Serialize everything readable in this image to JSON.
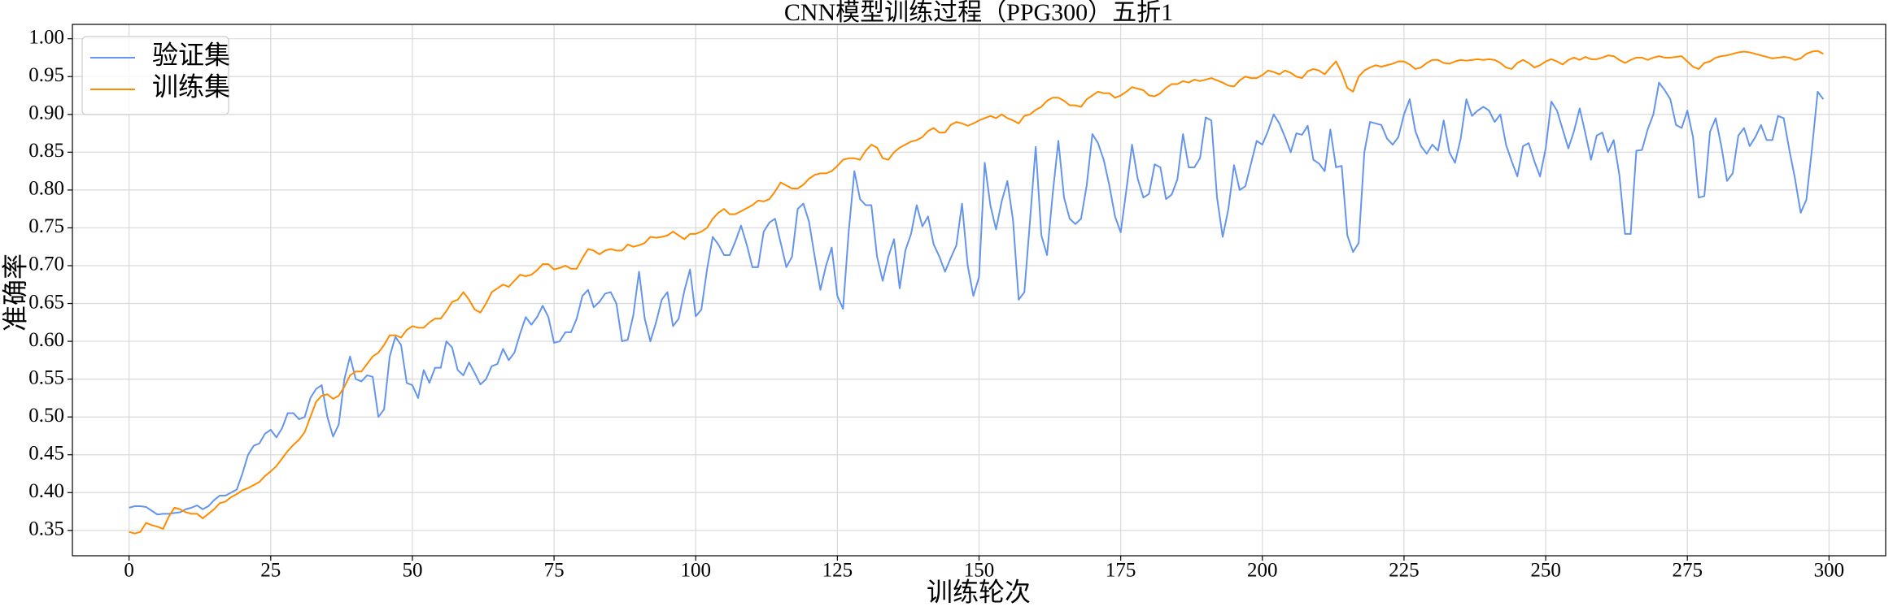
{
  "chart_data": {
    "type": "line",
    "title": "CNN模型训练过程（PPG300）五折1",
    "xlabel": "训练轮次",
    "ylabel": "准确率",
    "grid": true,
    "legend": "upper left",
    "xlim": [
      -10,
      310
    ],
    "ylim": [
      0.3165,
      1.019
    ],
    "xticks": [
      0,
      25,
      50,
      75,
      100,
      125,
      150,
      175,
      200,
      225,
      250,
      275,
      300
    ],
    "yticks": [
      0.35,
      {
        "value": 0.4,
        "label": "0.40"
      },
      0.45,
      {
        "value": 0.5,
        "label": "0.50"
      },
      0.55,
      {
        "value": 0.6,
        "label": "0.60"
      },
      0.65,
      {
        "value": 0.7,
        "label": "0.70"
      },
      0.75,
      {
        "value": 0.8,
        "label": "0.80"
      },
      0.85,
      {
        "value": 0.9,
        "label": "0.90"
      },
      0.95,
      {
        "value": 1.0,
        "label": "1.00"
      }
    ],
    "x": [
      0,
      1,
      2,
      3,
      4,
      5,
      6,
      7,
      8,
      9,
      10,
      11,
      12,
      13,
      14,
      15,
      16,
      17,
      18,
      19,
      20,
      21,
      22,
      23,
      24,
      25,
      26,
      27,
      28,
      29,
      30,
      31,
      32,
      33,
      34,
      35,
      36,
      37,
      38,
      39,
      40,
      41,
      42,
      43,
      44,
      45,
      46,
      47,
      48,
      49,
      50,
      51,
      52,
      53,
      54,
      55,
      56,
      57,
      58,
      59,
      60,
      61,
      62,
      63,
      64,
      65,
      66,
      67,
      68,
      69,
      70,
      71,
      72,
      73,
      74,
      75,
      76,
      77,
      78,
      79,
      80,
      81,
      82,
      83,
      84,
      85,
      86,
      87,
      88,
      89,
      90,
      91,
      92,
      93,
      94,
      95,
      96,
      97,
      98,
      99,
      100,
      101,
      102,
      103,
      104,
      105,
      106,
      107,
      108,
      109,
      110,
      111,
      112,
      113,
      114,
      115,
      116,
      117,
      118,
      119,
      120,
      121,
      122,
      123,
      124,
      125,
      126,
      127,
      128,
      129,
      130,
      131,
      132,
      133,
      134,
      135,
      136,
      137,
      138,
      139,
      140,
      141,
      142,
      143,
      144,
      145,
      146,
      147,
      148,
      149,
      150,
      151,
      152,
      153,
      154,
      155,
      156,
      157,
      158,
      159,
      160,
      161,
      162,
      163,
      164,
      165,
      166,
      167,
      168,
      169,
      170,
      171,
      172,
      173,
      174,
      175,
      176,
      177,
      178,
      179,
      180,
      181,
      182,
      183,
      184,
      185,
      186,
      187,
      188,
      189,
      190,
      191,
      192,
      193,
      194,
      195,
      196,
      197,
      198,
      199,
      200,
      201,
      202,
      203,
      204,
      205,
      206,
      207,
      208,
      209,
      210,
      211,
      212,
      213,
      214,
      215,
      216,
      217,
      218,
      219,
      220,
      221,
      222,
      223,
      224,
      225,
      226,
      227,
      228,
      229,
      230,
      231,
      232,
      233,
      234,
      235,
      236,
      237,
      238,
      239,
      240,
      241,
      242,
      243,
      244,
      245,
      246,
      247,
      248,
      249,
      250,
      251,
      252,
      253,
      254,
      255,
      256,
      257,
      258,
      259,
      260,
      261,
      262,
      263,
      264,
      265,
      266,
      267,
      268,
      269,
      270,
      271,
      272,
      273,
      274,
      275,
      276,
      277,
      278,
      279,
      280,
      281,
      282,
      283,
      284,
      285,
      286,
      287,
      288,
      289,
      290,
      291,
      292,
      293,
      294,
      295,
      296,
      297,
      298,
      299
    ],
    "series": [
      {
        "name": "验证集",
        "color": "#6495ed",
        "values": [
          0.38,
          0.382,
          0.382,
          0.381,
          0.376,
          0.371,
          0.372,
          0.372,
          0.373,
          0.374,
          0.378,
          0.38,
          0.383,
          0.378,
          0.382,
          0.39,
          0.396,
          0.396,
          0.4,
          0.404,
          0.425,
          0.45,
          0.462,
          0.465,
          0.478,
          0.483,
          0.473,
          0.485,
          0.505,
          0.505,
          0.497,
          0.5,
          0.525,
          0.537,
          0.542,
          0.5,
          0.474,
          0.49,
          0.55,
          0.58,
          0.55,
          0.547,
          0.555,
          0.553,
          0.5,
          0.51,
          0.58,
          0.606,
          0.595,
          0.545,
          0.542,
          0.525,
          0.562,
          0.545,
          0.565,
          0.565,
          0.6,
          0.592,
          0.562,
          0.555,
          0.572,
          0.558,
          0.543,
          0.55,
          0.567,
          0.57,
          0.59,
          0.575,
          0.585,
          0.61,
          0.632,
          0.622,
          0.632,
          0.647,
          0.632,
          0.598,
          0.6,
          0.612,
          0.612,
          0.63,
          0.66,
          0.668,
          0.645,
          0.652,
          0.663,
          0.665,
          0.65,
          0.6,
          0.602,
          0.635,
          0.692,
          0.63,
          0.6,
          0.625,
          0.655,
          0.665,
          0.62,
          0.63,
          0.667,
          0.695,
          0.633,
          0.642,
          0.695,
          0.738,
          0.728,
          0.714,
          0.714,
          0.732,
          0.753,
          0.728,
          0.698,
          0.698,
          0.745,
          0.757,
          0.762,
          0.73,
          0.698,
          0.712,
          0.775,
          0.782,
          0.758,
          0.712,
          0.668,
          0.7,
          0.724,
          0.66,
          0.643,
          0.745,
          0.825,
          0.788,
          0.78,
          0.78,
          0.712,
          0.68,
          0.712,
          0.735,
          0.67,
          0.72,
          0.742,
          0.78,
          0.752,
          0.765,
          0.728,
          0.712,
          0.692,
          0.71,
          0.727,
          0.782,
          0.7,
          0.66,
          0.685,
          0.836,
          0.78,
          0.748,
          0.785,
          0.812,
          0.76,
          0.655,
          0.665,
          0.76,
          0.857,
          0.74,
          0.714,
          0.795,
          0.865,
          0.79,
          0.762,
          0.755,
          0.762,
          0.806,
          0.874,
          0.862,
          0.84,
          0.806,
          0.765,
          0.744,
          0.8,
          0.86,
          0.815,
          0.79,
          0.795,
          0.834,
          0.83,
          0.788,
          0.794,
          0.814,
          0.874,
          0.83,
          0.83,
          0.842,
          0.896,
          0.892,
          0.79,
          0.738,
          0.775,
          0.833,
          0.8,
          0.805,
          0.835,
          0.865,
          0.86,
          0.878,
          0.9,
          0.888,
          0.87,
          0.85,
          0.875,
          0.873,
          0.885,
          0.84,
          0.835,
          0.825,
          0.88,
          0.83,
          0.832,
          0.74,
          0.718,
          0.73,
          0.85,
          0.89,
          0.888,
          0.886,
          0.868,
          0.86,
          0.87,
          0.9,
          0.92,
          0.878,
          0.858,
          0.848,
          0.86,
          0.852,
          0.892,
          0.85,
          0.836,
          0.868,
          0.92,
          0.898,
          0.905,
          0.91,
          0.905,
          0.89,
          0.9,
          0.86,
          0.838,
          0.818,
          0.858,
          0.862,
          0.838,
          0.818,
          0.855,
          0.917,
          0.905,
          0.88,
          0.855,
          0.878,
          0.908,
          0.875,
          0.84,
          0.872,
          0.876,
          0.85,
          0.866,
          0.82,
          0.742,
          0.742,
          0.852,
          0.853,
          0.88,
          0.9,
          0.942,
          0.932,
          0.92,
          0.886,
          0.882,
          0.905,
          0.87,
          0.79,
          0.792,
          0.877,
          0.895,
          0.858,
          0.812,
          0.822,
          0.872,
          0.882,
          0.858,
          0.87,
          0.886,
          0.866,
          0.866,
          0.898,
          0.895,
          0.853,
          0.815,
          0.77,
          0.787,
          0.855,
          0.93,
          0.92
        ]
      },
      {
        "name": "训练集",
        "color": "#ff8c00",
        "values": [
          0.348,
          0.346,
          0.348,
          0.36,
          0.357,
          0.355,
          0.352,
          0.368,
          0.38,
          0.378,
          0.374,
          0.372,
          0.372,
          0.366,
          0.372,
          0.378,
          0.386,
          0.388,
          0.394,
          0.398,
          0.403,
          0.406,
          0.41,
          0.414,
          0.422,
          0.428,
          0.435,
          0.445,
          0.455,
          0.463,
          0.47,
          0.48,
          0.5,
          0.52,
          0.528,
          0.53,
          0.524,
          0.528,
          0.54,
          0.555,
          0.56,
          0.56,
          0.57,
          0.58,
          0.585,
          0.595,
          0.608,
          0.608,
          0.605,
          0.615,
          0.62,
          0.618,
          0.618,
          0.625,
          0.63,
          0.63,
          0.64,
          0.652,
          0.655,
          0.665,
          0.655,
          0.642,
          0.638,
          0.65,
          0.665,
          0.67,
          0.675,
          0.672,
          0.68,
          0.688,
          0.686,
          0.688,
          0.694,
          0.702,
          0.702,
          0.695,
          0.697,
          0.7,
          0.696,
          0.696,
          0.71,
          0.722,
          0.72,
          0.715,
          0.72,
          0.722,
          0.72,
          0.72,
          0.728,
          0.725,
          0.727,
          0.73,
          0.738,
          0.737,
          0.738,
          0.74,
          0.745,
          0.74,
          0.735,
          0.742,
          0.742,
          0.745,
          0.75,
          0.762,
          0.77,
          0.775,
          0.768,
          0.768,
          0.772,
          0.776,
          0.78,
          0.786,
          0.785,
          0.788,
          0.798,
          0.81,
          0.806,
          0.802,
          0.802,
          0.807,
          0.815,
          0.82,
          0.822,
          0.822,
          0.825,
          0.832,
          0.84,
          0.842,
          0.842,
          0.84,
          0.852,
          0.86,
          0.856,
          0.842,
          0.84,
          0.85,
          0.856,
          0.86,
          0.864,
          0.866,
          0.87,
          0.878,
          0.882,
          0.876,
          0.876,
          0.886,
          0.89,
          0.888,
          0.885,
          0.888,
          0.892,
          0.895,
          0.898,
          0.895,
          0.9,
          0.895,
          0.892,
          0.888,
          0.898,
          0.9,
          0.906,
          0.91,
          0.918,
          0.922,
          0.922,
          0.918,
          0.912,
          0.912,
          0.91,
          0.92,
          0.925,
          0.93,
          0.928,
          0.928,
          0.922,
          0.925,
          0.93,
          0.936,
          0.934,
          0.932,
          0.925,
          0.924,
          0.928,
          0.935,
          0.94,
          0.94,
          0.944,
          0.942,
          0.946,
          0.944,
          0.946,
          0.948,
          0.945,
          0.942,
          0.938,
          0.937,
          0.945,
          0.95,
          0.948,
          0.948,
          0.952,
          0.958,
          0.956,
          0.953,
          0.958,
          0.955,
          0.95,
          0.948,
          0.957,
          0.96,
          0.958,
          0.953,
          0.962,
          0.97,
          0.955,
          0.935,
          0.93,
          0.95,
          0.958,
          0.962,
          0.965,
          0.963,
          0.965,
          0.967,
          0.97,
          0.97,
          0.966,
          0.96,
          0.962,
          0.968,
          0.972,
          0.972,
          0.968,
          0.967,
          0.97,
          0.972,
          0.971,
          0.972,
          0.973,
          0.972,
          0.973,
          0.972,
          0.968,
          0.962,
          0.96,
          0.968,
          0.972,
          0.968,
          0.962,
          0.965,
          0.97,
          0.973,
          0.97,
          0.966,
          0.972,
          0.975,
          0.972,
          0.976,
          0.973,
          0.973,
          0.975,
          0.978,
          0.977,
          0.972,
          0.968,
          0.972,
          0.975,
          0.975,
          0.972,
          0.975,
          0.977,
          0.975,
          0.975,
          0.976,
          0.977,
          0.97,
          0.963,
          0.96,
          0.968,
          0.97,
          0.975,
          0.977,
          0.978,
          0.98,
          0.982,
          0.983,
          0.982,
          0.98,
          0.978,
          0.976,
          0.974,
          0.975,
          0.976,
          0.975,
          0.972,
          0.974,
          0.98,
          0.983,
          0.984,
          0.98
        ]
      }
    ]
  }
}
